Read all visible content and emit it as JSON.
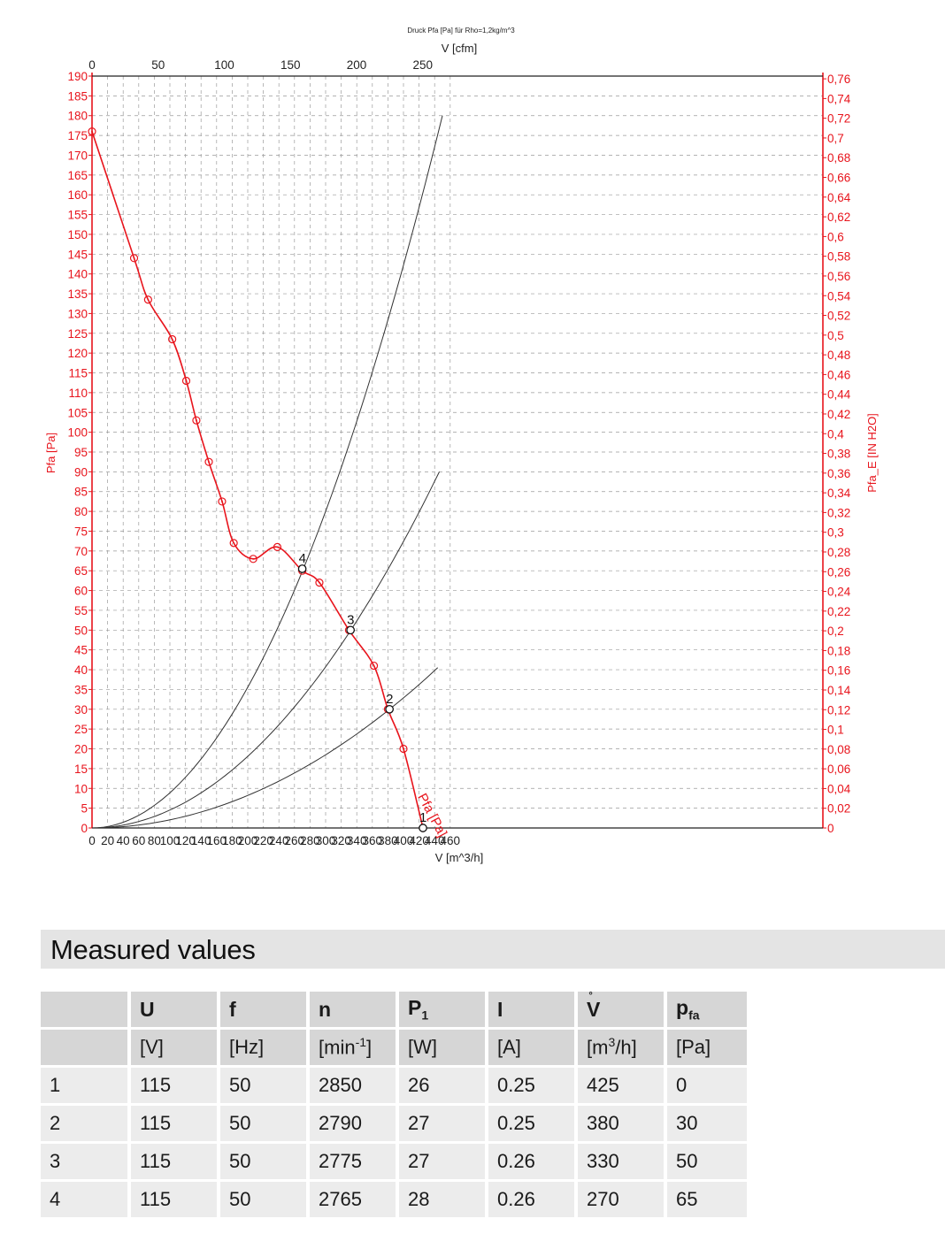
{
  "chart_data": {
    "type": "line",
    "title": "Druck Pfa [Pa] für Rho=1,2kg/m^3",
    "xlabel": "V [m^3/h]",
    "x2label": "V [cfm]",
    "ylabel": "Pfa [Pa]",
    "y2label": "Pfa_E [IN H2O]",
    "xlim": [
      0,
      470
    ],
    "ylim": [
      0,
      190
    ],
    "x_ticks": [
      0,
      20,
      40,
      60,
      80,
      100,
      120,
      140,
      160,
      180,
      200,
      220,
      240,
      260,
      280,
      300,
      320,
      340,
      360,
      380,
      400,
      420,
      440,
      460
    ],
    "x2_ticks": [
      "0",
      "50",
      "100",
      "150",
      "200",
      "250"
    ],
    "y_ticks": [
      0,
      5,
      10,
      15,
      20,
      25,
      30,
      35,
      40,
      45,
      50,
      55,
      60,
      65,
      70,
      75,
      80,
      85,
      90,
      95,
      100,
      105,
      110,
      115,
      120,
      125,
      130,
      135,
      140,
      145,
      150,
      155,
      160,
      165,
      170,
      175,
      180,
      185,
      190
    ],
    "y2_ticks": [
      "0",
      "0,02",
      "0,04",
      "0,06",
      "0,08",
      "0,1",
      "0,12",
      "0,14",
      "0,16",
      "0,18",
      "0,2",
      "0,22",
      "0,24",
      "0,26",
      "0,28",
      "0,3",
      "0,32",
      "0,34",
      "0,36",
      "0,38",
      "0,4",
      "0,42",
      "0,44",
      "0,46",
      "0,48",
      "0,5",
      "0,52",
      "0,54",
      "0,56",
      "0,58",
      "0,6",
      "0,62",
      "0,64",
      "0,66",
      "0,68",
      "0,7",
      "0,72",
      "0,74",
      "0,76"
    ],
    "grid": true,
    "series": [
      {
        "name": "Pfa [Pa]",
        "color": "#e8141c",
        "x": [
          0,
          54,
          72,
          103,
          121,
          134,
          150,
          167,
          182,
          207,
          238,
          270,
          292,
          330,
          362,
          380,
          400,
          425
        ],
        "y": [
          176,
          144,
          133.5,
          123.5,
          113,
          103,
          92.5,
          82.5,
          72,
          68,
          71,
          65,
          62,
          50,
          41,
          30,
          20,
          0
        ]
      }
    ],
    "system_curves": [
      {
        "x_end": 450,
        "y_end": 180,
        "color": "#333333"
      },
      {
        "x_end": 446,
        "y_end": 90,
        "color": "#333333"
      },
      {
        "x_end": 444,
        "y_end": 40.5,
        "color": "#333333"
      }
    ],
    "operating_points": [
      {
        "label": "1",
        "x": 425,
        "y": 0
      },
      {
        "label": "2",
        "x": 382,
        "y": 30
      },
      {
        "label": "3",
        "x": 332,
        "y": 50
      },
      {
        "label": "4",
        "x": 270,
        "y": 65.5
      }
    ],
    "curve_label": "Pfa [Pa]"
  },
  "measured": {
    "title": "Measured values",
    "headers": [
      "",
      "U",
      "f",
      "n",
      "P",
      "I",
      "V",
      "p"
    ],
    "header_subs": [
      "",
      "",
      "",
      "",
      "1",
      "",
      "",
      "fa"
    ],
    "units": [
      "",
      "[V]",
      "[Hz]",
      "[min-1]",
      "[W]",
      "[A]",
      "[m3/h]",
      "[Pa]"
    ],
    "rows": [
      [
        "1",
        "115",
        "50",
        "2850",
        "26",
        "0.25",
        "425",
        "0"
      ],
      [
        "2",
        "115",
        "50",
        "2790",
        "27",
        "0.25",
        "380",
        "30"
      ],
      [
        "3",
        "115",
        "50",
        "2775",
        "27",
        "0.26",
        "330",
        "50"
      ],
      [
        "4",
        "115",
        "50",
        "2765",
        "28",
        "0.26",
        "270",
        "65"
      ]
    ]
  }
}
